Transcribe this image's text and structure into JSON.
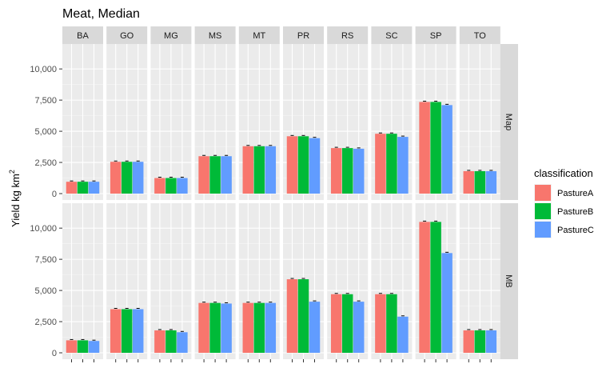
{
  "chart_data": {
    "type": "bar",
    "title": "Meat, Median",
    "ylabel": "Yield kg km",
    "ylabel_superscript": "2",
    "ylim": [
      0,
      12000
    ],
    "yticks": [
      0,
      2500,
      5000,
      7500,
      10000
    ],
    "ytick_labels": [
      "0",
      "2,500",
      "5,000",
      "7,500",
      "10,000"
    ],
    "grid": true,
    "legend_placement": "right",
    "legend_title": "classification",
    "facets_x": [
      "BA",
      "GO",
      "MG",
      "MS",
      "MT",
      "PR",
      "RS",
      "SC",
      "SP",
      "TO"
    ],
    "facets_y": [
      "Map",
      "MB"
    ],
    "series": [
      {
        "name": "PastureA",
        "color": "#F8766D"
      },
      {
        "name": "PastureB",
        "color": "#00BA38"
      },
      {
        "name": "PastureC",
        "color": "#619CFF"
      }
    ],
    "panels": {
      "Map": {
        "BA": [
          950,
          950,
          950
        ],
        "GO": [
          2550,
          2550,
          2550
        ],
        "MG": [
          1250,
          1250,
          1250
        ],
        "MS": [
          3000,
          3000,
          3000
        ],
        "MT": [
          3800,
          3800,
          3800
        ],
        "PR": [
          4600,
          4600,
          4450
        ],
        "RS": [
          3650,
          3650,
          3600
        ],
        "SC": [
          4800,
          4800,
          4550
        ],
        "SP": [
          7350,
          7350,
          7100
        ],
        "TO": [
          1800,
          1800,
          1800
        ]
      },
      "MB": {
        "BA": [
          1000,
          1000,
          950
        ],
        "GO": [
          3500,
          3500,
          3500
        ],
        "MG": [
          1800,
          1800,
          1650
        ],
        "MS": [
          4000,
          4000,
          3950
        ],
        "MT": [
          4000,
          4000,
          4000
        ],
        "PR": [
          5900,
          5900,
          4100
        ],
        "RS": [
          4700,
          4700,
          4100
        ],
        "SC": [
          4700,
          4700,
          2900
        ],
        "SP": [
          10500,
          10500,
          8000
        ],
        "TO": [
          1800,
          1800,
          1800
        ]
      }
    }
  }
}
